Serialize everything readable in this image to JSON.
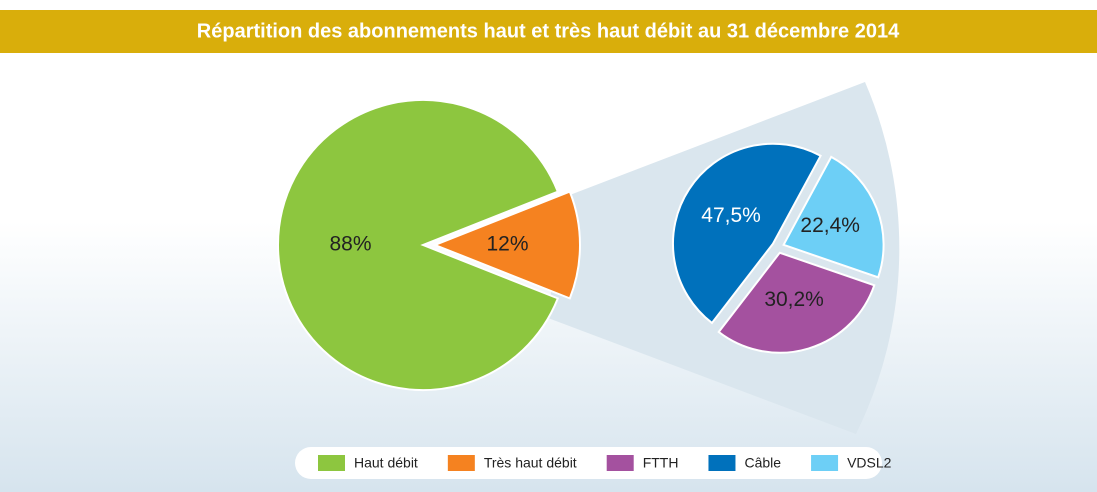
{
  "chart_data": [
    {
      "type": "pie",
      "title": "Répartition des abonnements haut et très haut débit au 31 décembre 2014",
      "categories": [
        "Haut débit",
        "Très haut débit"
      ],
      "values": [
        88,
        12
      ],
      "value_labels": [
        "88%",
        "12%"
      ],
      "colors": [
        "#8dc63f",
        "#f58220"
      ],
      "startangle": 111.6
    },
    {
      "type": "pie",
      "categories": [
        "FTTH",
        "Câble",
        "VDSL2"
      ],
      "values": [
        30.2,
        47.5,
        22.4
      ],
      "value_labels": [
        "30,2%",
        "47,5%",
        "22,4%"
      ],
      "colors": [
        "#a4519f",
        "#0071bc",
        "#6dcff6"
      ],
      "startangle": 109
    }
  ]
}
